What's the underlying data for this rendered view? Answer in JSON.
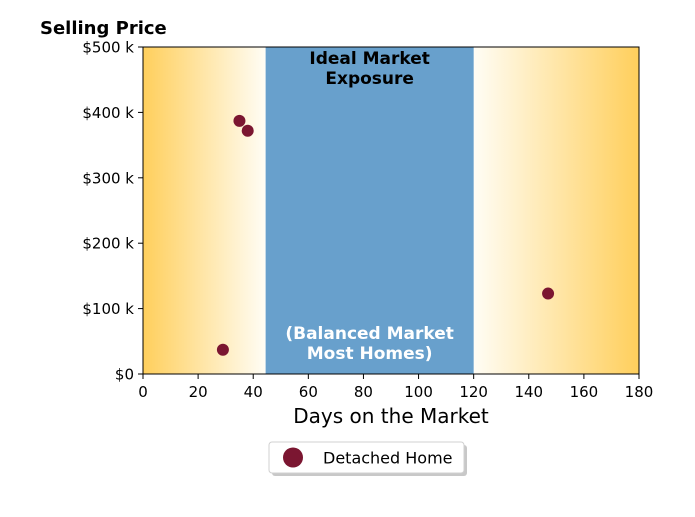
{
  "chart_data": {
    "type": "scatter",
    "title": "Selling Price",
    "xlabel": "Days on the Market",
    "ylabel": "",
    "xlim": [
      0,
      180
    ],
    "ylim": [
      0,
      500000
    ],
    "x_ticks": [
      0,
      20,
      40,
      60,
      80,
      100,
      120,
      140,
      160,
      180
    ],
    "x_tick_labels": [
      "0",
      "20",
      "40",
      "60",
      "80",
      "100",
      "120",
      "140",
      "160",
      "180"
    ],
    "y_ticks": [
      0,
      100000,
      200000,
      300000,
      400000,
      500000
    ],
    "y_tick_labels": [
      "$0",
      "$100 k",
      "$200 k",
      "$300 k",
      "$400 k",
      "$500 k"
    ],
    "grid": false,
    "legend_position": "bottom-center",
    "ideal_band": {
      "x_range": [
        44.5,
        120
      ],
      "top_label": [
        "Ideal Market",
        "Exposure"
      ],
      "bottom_label": [
        "(Balanced Market",
        "Most Homes)"
      ]
    },
    "series": [
      {
        "name": "Detached Home",
        "color": "#7b1631",
        "points": [
          {
            "x": 29,
            "y": 37000
          },
          {
            "x": 35,
            "y": 387000
          },
          {
            "x": 38,
            "y": 372000
          },
          {
            "x": 147,
            "y": 123000
          }
        ]
      }
    ],
    "colors": {
      "band": "#68a0cc",
      "gradient_outer": "#ffcf5c",
      "gradient_inner": "#fffdf5"
    }
  }
}
